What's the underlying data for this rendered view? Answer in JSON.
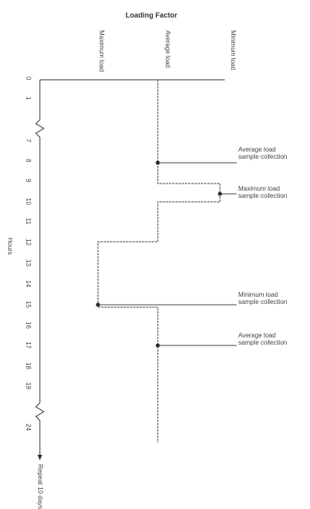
{
  "title": "Loading Factor",
  "load_levels": {
    "maximum": "Maximum load",
    "average": "Average load",
    "minimum": "Minimum load"
  },
  "axis_label": "Hours",
  "hour_ticks": [
    "0",
    "1",
    "7",
    "8",
    "9",
    "10",
    "11",
    "12",
    "13",
    "14",
    "15",
    "16",
    "17",
    "18",
    "19",
    "24"
  ],
  "axis_end_label": "Repeat 10 days",
  "annotations": [
    {
      "line1": "Average load",
      "line2": "sample collection"
    },
    {
      "line1": "Maximum load",
      "line2": "sample collection"
    },
    {
      "line1": "Minimum load",
      "line2": "sample collection"
    },
    {
      "line1": "Average load",
      "line2": "sample collection"
    }
  ]
}
